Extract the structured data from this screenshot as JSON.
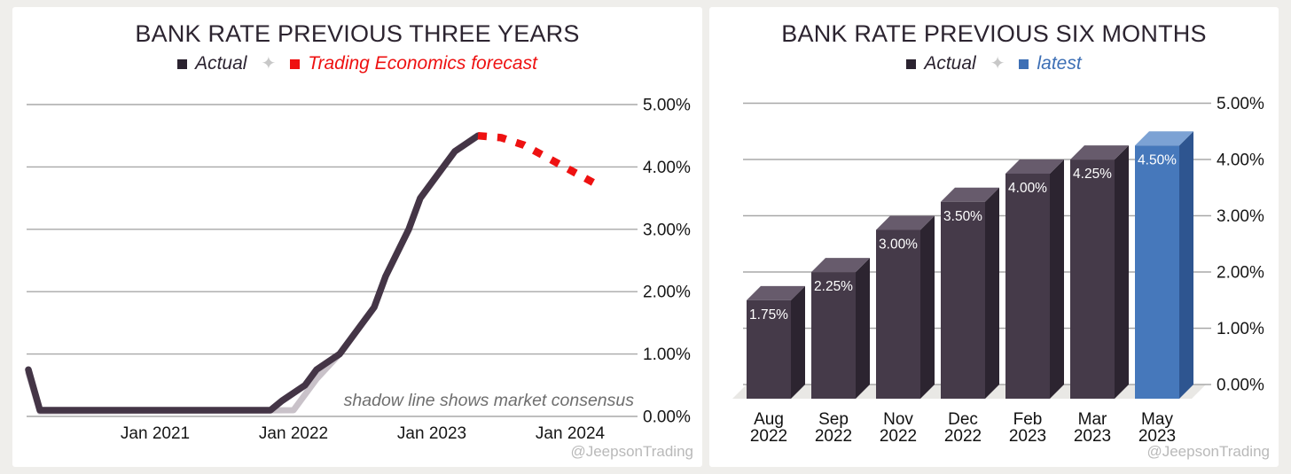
{
  "watermark": "@JeepsonTrading",
  "colors": {
    "background": "#efeeeb",
    "card": "#ffffff",
    "grid": "#a8a8a8",
    "axis_text": "#161616",
    "title_text": "#2c2430",
    "actual_line": "#443546",
    "shadow_line": "#c9c2c9",
    "forecast_red": "#ee1111",
    "latest_blue": "#3d6fb5",
    "actual_legend": "#2b2330",
    "bar_front": "#453a49",
    "bar_top": "#675b6c",
    "bar_side": "#2c2430",
    "blue_front": "#4678bb",
    "blue_top": "#7ca2d4",
    "blue_side": "#2e5590",
    "annotation_text": "#6e6e6e",
    "floor": "#e9e8e5",
    "watermark_text": "#b9b9b9"
  },
  "chart_data": [
    {
      "type": "line",
      "title": "BANK RATE PREVIOUS THREE YEARS",
      "legend": [
        {
          "name": "Actual",
          "color": "#2b2330"
        },
        {
          "name": "Trading Economics forecast",
          "color": "#ee1111"
        }
      ],
      "annotation": "shadow line shows market consensus",
      "x_axis": {
        "ticks": [
          {
            "label": "Jan 2021",
            "month": "2021-01"
          },
          {
            "label": "Jan 2022",
            "month": "2022-01"
          },
          {
            "label": "Jan 2023",
            "month": "2023-01"
          },
          {
            "label": "Jan 2024",
            "month": "2024-01"
          }
        ]
      },
      "y_axis": {
        "unit": "%",
        "min": 0,
        "max": 5,
        "ticks": [
          {
            "label": "5.00%",
            "value": 5
          },
          {
            "label": "4.00%",
            "value": 4
          },
          {
            "label": "3.00%",
            "value": 3
          },
          {
            "label": "2.00%",
            "value": 2
          },
          {
            "label": "1.00%",
            "value": 1
          },
          {
            "label": "0.00%",
            "value": 0
          }
        ]
      },
      "series": [
        {
          "name": "Market consensus (shadow)",
          "role": "shadow",
          "points": [
            [
              "2020-02",
              0.7
            ],
            [
              "2020-03",
              0.08
            ],
            [
              "2022-01",
              0.1
            ],
            [
              "2022-03",
              0.6
            ],
            [
              "2022-05",
              1.0
            ],
            [
              "2022-06",
              1.25
            ],
            [
              "2022-08",
              1.75
            ],
            [
              "2022-09",
              2.25
            ],
            [
              "2022-11",
              3.0
            ],
            [
              "2022-12",
              3.5
            ],
            [
              "2023-02",
              4.0
            ],
            [
              "2023-03",
              4.25
            ],
            [
              "2023-05",
              4.5
            ]
          ]
        },
        {
          "name": "Actual",
          "role": "actual",
          "points": [
            [
              "2020-02",
              0.75
            ],
            [
              "2020-03",
              0.1
            ],
            [
              "2021-11",
              0.1
            ],
            [
              "2021-12",
              0.25
            ],
            [
              "2022-02",
              0.5
            ],
            [
              "2022-03",
              0.75
            ],
            [
              "2022-05",
              1.0
            ],
            [
              "2022-06",
              1.25
            ],
            [
              "2022-08",
              1.75
            ],
            [
              "2022-09",
              2.25
            ],
            [
              "2022-11",
              3.0
            ],
            [
              "2022-12",
              3.5
            ],
            [
              "2023-02",
              4.0
            ],
            [
              "2023-03",
              4.25
            ],
            [
              "2023-05",
              4.5
            ]
          ]
        },
        {
          "name": "Trading Economics forecast",
          "role": "forecast",
          "points": [
            [
              "2023-05",
              4.5
            ],
            [
              "2023-07",
              4.47
            ],
            [
              "2023-09",
              4.35
            ],
            [
              "2023-11",
              4.15
            ],
            [
              "2024-01",
              3.95
            ],
            [
              "2024-03",
              3.75
            ]
          ]
        }
      ]
    },
    {
      "type": "bar",
      "title": "BANK RATE PREVIOUS SIX MONTHS",
      "legend": [
        {
          "name": "Actual",
          "color": "#2b2330"
        },
        {
          "name": "latest",
          "color": "#3d6fb5"
        }
      ],
      "y_axis": {
        "unit": "%",
        "min": 0,
        "max": 5,
        "ticks": [
          {
            "label": "5.00%",
            "value": 5
          },
          {
            "label": "4.00%",
            "value": 4
          },
          {
            "label": "3.00%",
            "value": 3
          },
          {
            "label": "2.00%",
            "value": 2
          },
          {
            "label": "1.00%",
            "value": 1
          },
          {
            "label": "0.00%",
            "value": 0
          }
        ]
      },
      "bars": [
        {
          "month": "Aug",
          "year": "2022",
          "value": 1.75,
          "label": "1.75%",
          "series": "Actual"
        },
        {
          "month": "Sep",
          "year": "2022",
          "value": 2.25,
          "label": "2.25%",
          "series": "Actual"
        },
        {
          "month": "Nov",
          "year": "2022",
          "value": 3.0,
          "label": "3.00%",
          "series": "Actual"
        },
        {
          "month": "Dec",
          "year": "2022",
          "value": 3.5,
          "label": "3.50%",
          "series": "Actual"
        },
        {
          "month": "Feb",
          "year": "2023",
          "value": 4.0,
          "label": "4.00%",
          "series": "Actual"
        },
        {
          "month": "Mar",
          "year": "2023",
          "value": 4.25,
          "label": "4.25%",
          "series": "Actual"
        },
        {
          "month": "May",
          "year": "2023",
          "value": 4.5,
          "label": "4.50%",
          "series": "latest"
        }
      ]
    }
  ]
}
